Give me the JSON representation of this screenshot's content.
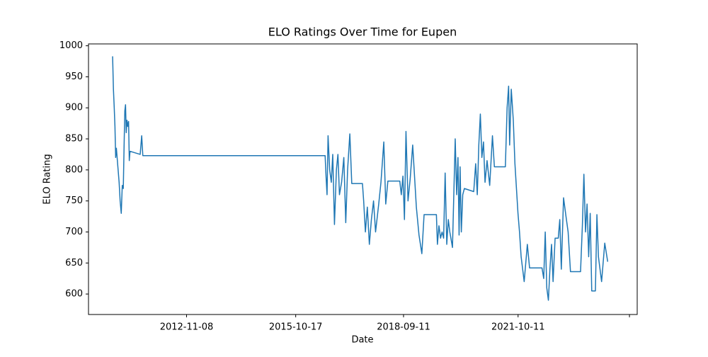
{
  "chart_data": {
    "type": "line",
    "title": "ELO Ratings Over Time for Eupen",
    "x_label": "Date",
    "y_label": "ELO Rating",
    "x": [
      "2010-11-12",
      "2010-11-20",
      "2010-11-28",
      "2010-12-05",
      "2010-12-12",
      "2010-12-19",
      "2011-01-15",
      "2011-01-25",
      "2011-02-05",
      "2011-02-15",
      "2011-02-25",
      "2011-03-05",
      "2011-03-12",
      "2011-03-19",
      "2011-03-26",
      "2011-04-02",
      "2011-04-10",
      "2011-04-18",
      "2011-04-25",
      "2011-05-02",
      "2011-08-10",
      "2011-08-25",
      "2011-09-05",
      "2016-08-01",
      "2016-08-10",
      "2016-08-20",
      "2016-08-30",
      "2016-09-15",
      "2016-10-01",
      "2016-10-15",
      "2016-11-01",
      "2016-11-20",
      "2016-12-05",
      "2016-12-20",
      "2017-01-10",
      "2017-02-01",
      "2017-02-20",
      "2017-03-10",
      "2017-04-01",
      "2017-04-20",
      "2017-08-03",
      "2017-08-15",
      "2017-09-01",
      "2017-09-20",
      "2017-10-10",
      "2017-10-30",
      "2017-11-20",
      "2017-12-10",
      "2018-01-10",
      "2018-02-01",
      "2018-03-01",
      "2018-03-20",
      "2018-04-10",
      "2018-08-05",
      "2018-08-20",
      "2018-09-05",
      "2018-09-20",
      "2018-10-05",
      "2018-10-25",
      "2018-11-15",
      "2018-12-10",
      "2019-01-15",
      "2019-02-10",
      "2019-03-10",
      "2019-04-01",
      "2019-07-31",
      "2019-08-10",
      "2019-08-25",
      "2019-09-10",
      "2019-09-25",
      "2019-10-10",
      "2019-10-25",
      "2019-11-10",
      "2019-11-25",
      "2019-12-10",
      "2020-01-05",
      "2020-02-01",
      "2020-02-15",
      "2020-02-28",
      "2020-03-10",
      "2020-03-20",
      "2020-04-01",
      "2020-04-15",
      "2020-05-01",
      "2020-08-01",
      "2020-08-20",
      "2020-09-05",
      "2020-09-20",
      "2020-10-05",
      "2020-10-20",
      "2020-11-05",
      "2020-11-20",
      "2020-12-10",
      "2021-01-05",
      "2021-02-01",
      "2021-02-20",
      "2021-06-08",
      "2021-06-25",
      "2021-07-10",
      "2021-07-20",
      "2021-08-05",
      "2021-08-25",
      "2021-09-10",
      "2021-09-25",
      "2021-10-10",
      "2021-10-25",
      "2021-11-10",
      "2021-11-25",
      "2021-12-10",
      "2022-01-10",
      "2022-02-01",
      "2022-06-03",
      "2022-06-20",
      "2022-07-05",
      "2022-07-20",
      "2022-08-05",
      "2022-08-20",
      "2022-09-05",
      "2022-09-20",
      "2022-10-10",
      "2022-11-10",
      "2022-11-25",
      "2022-12-10",
      "2023-01-01",
      "2023-01-25",
      "2023-02-15",
      "2023-03-10",
      "2023-06-17",
      "2023-07-05",
      "2023-07-20",
      "2023-08-05",
      "2023-08-20",
      "2023-09-05",
      "2023-09-20",
      "2023-10-05",
      "2023-11-10",
      "2023-11-25",
      "2023-12-10",
      "2024-01-10",
      "2024-02-10",
      "2024-03-10"
    ],
    "series": [
      {
        "name": "Eupen",
        "color": "#1f77b4",
        "values": [
          983,
          930,
          900,
          870,
          820,
          835,
          780,
          750,
          730,
          775,
          770,
          840,
          895,
          905,
          860,
          880,
          870,
          878,
          815,
          830,
          825,
          855,
          823,
          823,
          790,
          760,
          855,
          800,
          780,
          825,
          712,
          800,
          825,
          760,
          780,
          820,
          715,
          800,
          858,
          778,
          778,
          750,
          700,
          740,
          680,
          720,
          750,
          700,
          745,
          780,
          845,
          745,
          782,
          782,
          760,
          790,
          720,
          862,
          750,
          785,
          840,
          740,
          695,
          665,
          728,
          728,
          680,
          710,
          690,
          700,
          690,
          795,
          680,
          720,
          700,
          675,
          850,
          760,
          820,
          695,
          805,
          700,
          760,
          770,
          765,
          810,
          760,
          840,
          890,
          820,
          845,
          780,
          815,
          775,
          855,
          805,
          805,
          900,
          935,
          840,
          930,
          880,
          810,
          770,
          730,
          700,
          660,
          640,
          620,
          680,
          642,
          642,
          625,
          700,
          610,
          590,
          640,
          680,
          620,
          690,
          690,
          720,
          640,
          755,
          725,
          700,
          636,
          636,
          710,
          793,
          700,
          745,
          660,
          730,
          605,
          605,
          728,
          660,
          620,
          682,
          652
        ]
      }
    ],
    "xlim": [
      "2010-03-20",
      "2024-12-25"
    ],
    "xticks": [
      "2012-11-08",
      "2015-10-17",
      "2018-09-11",
      "2021-10-11",
      {
        "value": "2024-10-10",
        "label": null
      }
    ],
    "ylim": [
      567,
      1003
    ],
    "yticks": [
      600,
      650,
      700,
      750,
      800,
      850,
      900,
      950,
      1000
    ],
    "grid": false
  }
}
